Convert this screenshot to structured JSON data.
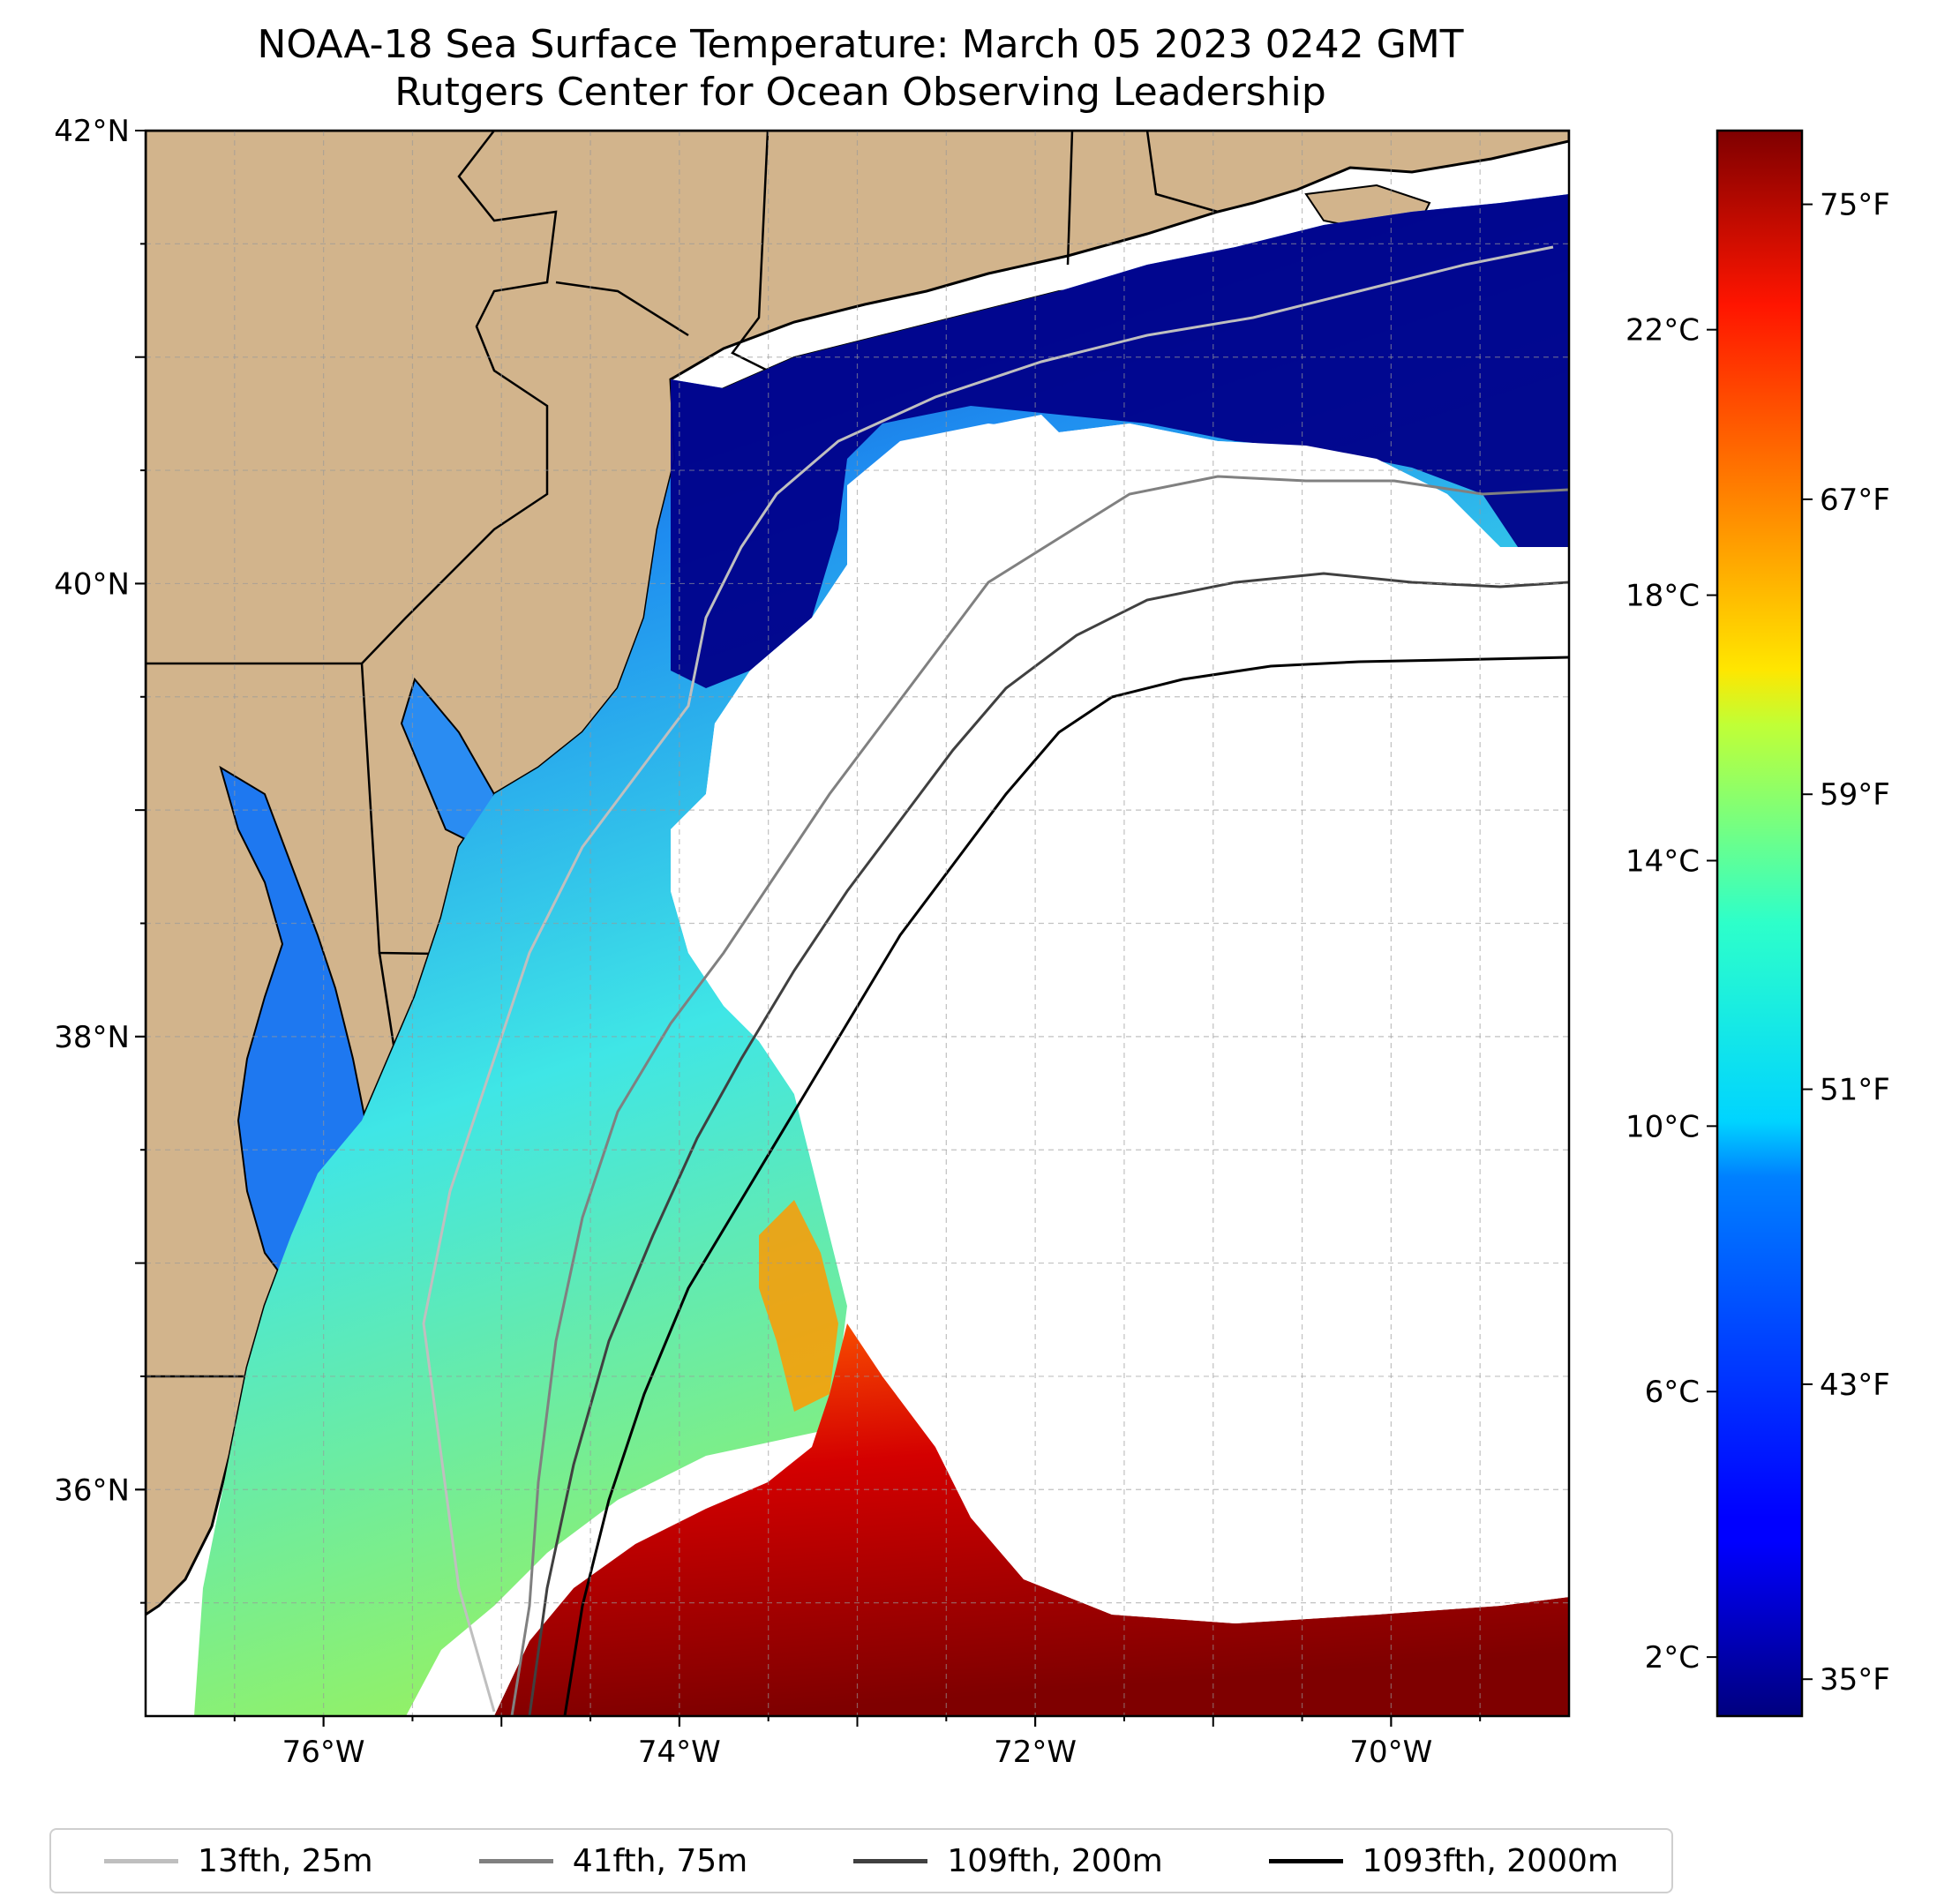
{
  "title": "NOAA-18 Sea Surface Temperature: March 05 2023 0242 GMT",
  "subtitle": "Rutgers Center for Ocean Observing Leadership",
  "map": {
    "lon_range": [
      -77.0,
      -69.0
    ],
    "lat_range": [
      35.0,
      42.0
    ],
    "lat_ticks": [
      {
        "value": 42,
        "label": "42°N"
      },
      {
        "value": 40,
        "label": "40°N"
      },
      {
        "value": 38,
        "label": "38°N"
      },
      {
        "value": 36,
        "label": "36°N"
      }
    ],
    "lon_ticks": [
      {
        "value": -76,
        "label": "76°W"
      },
      {
        "value": -74,
        "label": "74°W"
      },
      {
        "value": -72,
        "label": "72°W"
      },
      {
        "value": -70,
        "label": "70°W"
      }
    ],
    "land_color": "#d2b48c",
    "grid": true
  },
  "colorbar": {
    "colormap": "jet",
    "range_f": [
      34,
      77
    ],
    "fahrenheit_ticks": [
      {
        "value": 75,
        "label": "75°F"
      },
      {
        "value": 67,
        "label": "67°F"
      },
      {
        "value": 59,
        "label": "59°F"
      },
      {
        "value": 51,
        "label": "51°F"
      },
      {
        "value": 43,
        "label": "43°F"
      },
      {
        "value": 35,
        "label": "35°F"
      }
    ],
    "celsius_ticks": [
      {
        "value": 22,
        "label": "22°C"
      },
      {
        "value": 18,
        "label": "18°C"
      },
      {
        "value": 14,
        "label": "14°C"
      },
      {
        "value": 10,
        "label": "10°C"
      },
      {
        "value": 6,
        "label": "6°C"
      },
      {
        "value": 2,
        "label": "2°C"
      }
    ]
  },
  "legend": [
    {
      "label": "13fth, 25m",
      "color": "#bfbfbf"
    },
    {
      "label": "41fth, 75m",
      "color": "#808080"
    },
    {
      "label": "109fth, 200m",
      "color": "#404040"
    },
    {
      "label": "1093fth, 2000m",
      "color": "#000000"
    }
  ]
}
